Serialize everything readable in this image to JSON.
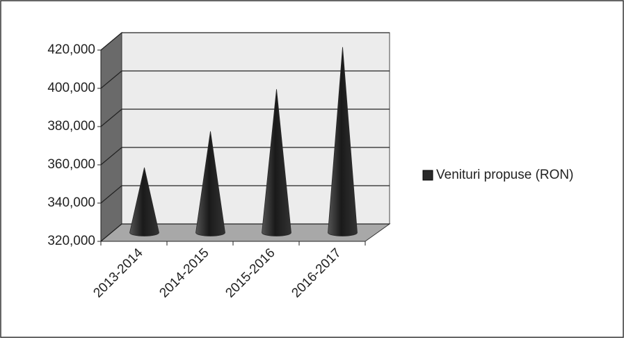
{
  "chart_data": {
    "type": "cone3d",
    "categories": [
      "2013-2014",
      "2014-2015",
      "2015-2016",
      "2016-2017"
    ],
    "series": [
      {
        "name": "Venituri propuse (RON)",
        "color": "#2a2a2a",
        "values": [
          354000,
          373000,
          395000,
          417000
        ]
      }
    ],
    "ylim": [
      320000,
      420000
    ],
    "yticks": [
      {
        "value": 320000,
        "label": "320,000"
      },
      {
        "value": 340000,
        "label": "340,000"
      },
      {
        "value": 360000,
        "label": "360,000"
      },
      {
        "value": 380000,
        "label": "380,000"
      },
      {
        "value": 400000,
        "label": "400,000"
      },
      {
        "value": 420000,
        "label": "420,000"
      }
    ],
    "grid": true,
    "legend": "right"
  }
}
